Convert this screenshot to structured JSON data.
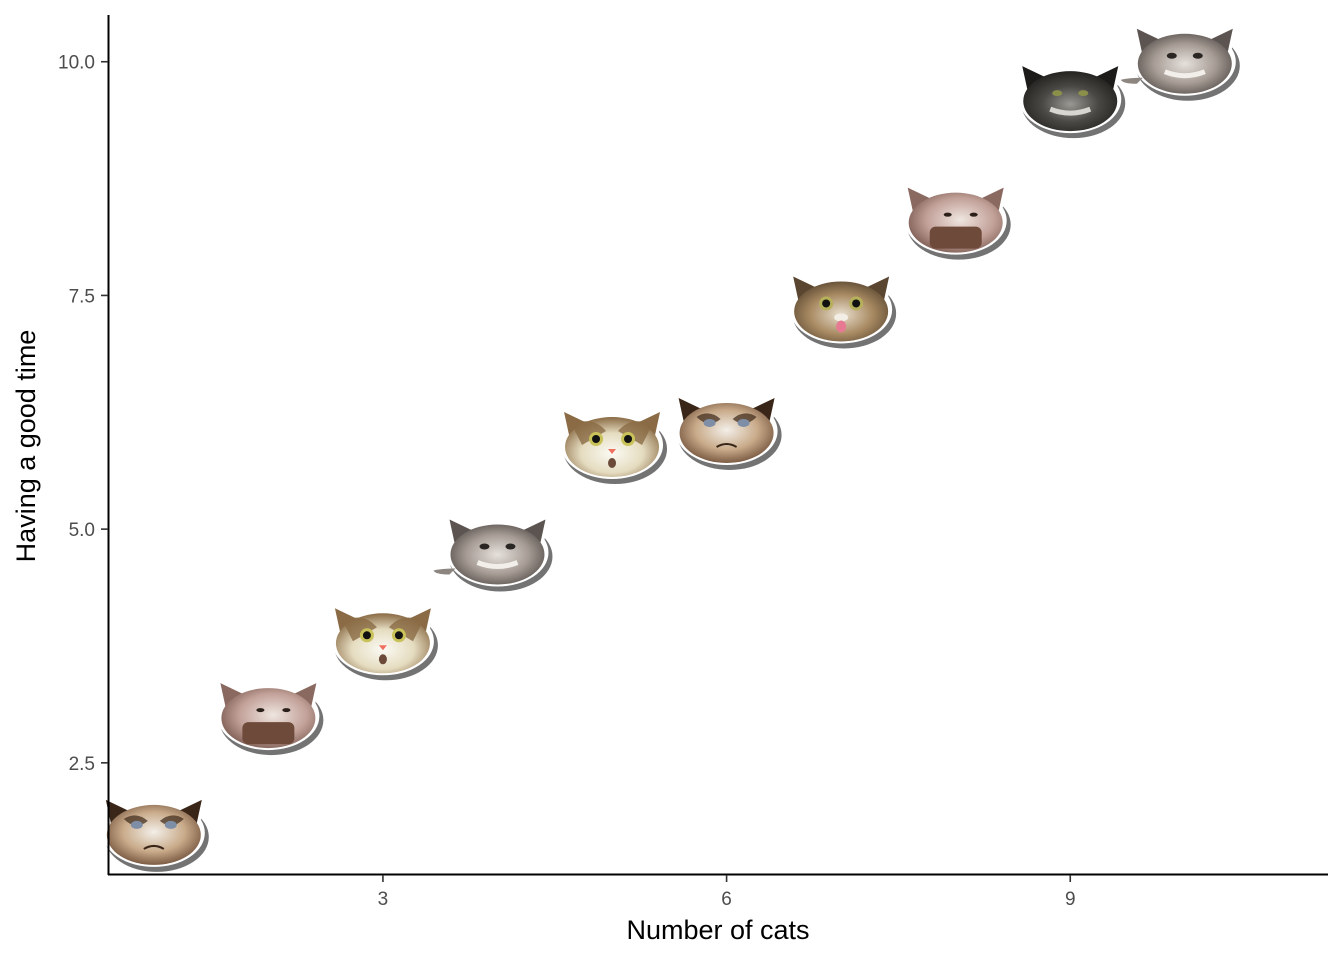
{
  "chart_data": {
    "type": "scatter",
    "title": "",
    "xlabel": "Number of cats",
    "ylabel": "Having a good time",
    "xlim": [
      0.6,
      11.25
    ],
    "ylim": [
      1.3,
      10.5
    ],
    "x_ticks": [
      3,
      6,
      9
    ],
    "x_tick_labels": [
      "3",
      "6",
      "9"
    ],
    "y_ticks": [
      2.5,
      5.0,
      7.5,
      10.0
    ],
    "y_tick_labels": [
      "2.5",
      "5.0",
      "7.5",
      "10.0"
    ],
    "grid": false,
    "marker": "cat-face-image",
    "points": [
      {
        "x": 1,
        "y": 1.75,
        "cat": "grumpy-cat"
      },
      {
        "x": 2,
        "y": 3.0,
        "cat": "pop-cat"
      },
      {
        "x": 3,
        "y": 3.8,
        "cat": "surprised-cat"
      },
      {
        "x": 4,
        "y": 4.75,
        "cat": "fluffy-cat"
      },
      {
        "x": 5,
        "y": 5.9,
        "cat": "surprised-cat"
      },
      {
        "x": 6,
        "y": 6.05,
        "cat": "grumpy-cat"
      },
      {
        "x": 7,
        "y": 7.35,
        "cat": "tongue-cat"
      },
      {
        "x": 8,
        "y": 8.3,
        "cat": "pop-cat"
      },
      {
        "x": 9,
        "y": 9.6,
        "cat": "dark-fluffy-cat"
      },
      {
        "x": 10,
        "y": 10.0,
        "cat": "fluffy-cat"
      }
    ]
  },
  "colors": {
    "axis": "#000000",
    "tick_text": "#4d4d4d",
    "background": "#ffffff"
  }
}
